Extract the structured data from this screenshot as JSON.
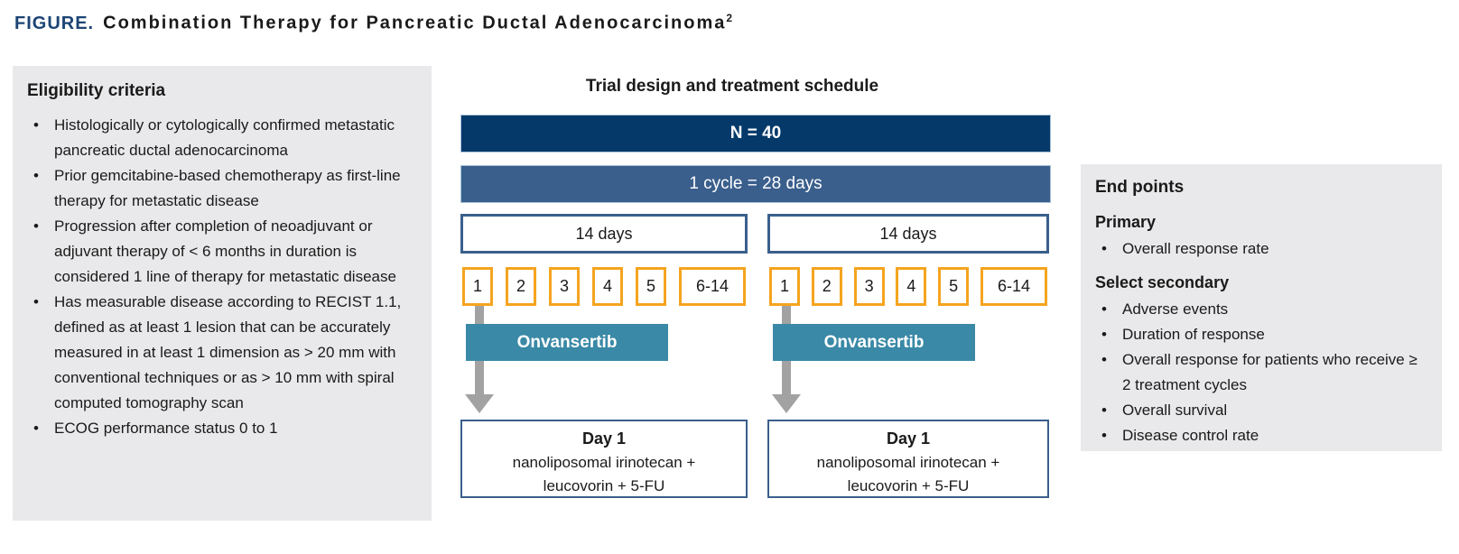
{
  "figure": {
    "label": "FIGURE.",
    "title": "Combination Therapy for Pancreatic Ductal Adenocarcinoma",
    "title_superscript": "2"
  },
  "eligibility": {
    "heading": "Eligibility criteria",
    "items": [
      "Histologically or cytologically confirmed metastatic pancreatic ductal adenocarcinoma",
      "Prior gemcitabine-based chemotherapy as first-line therapy for metastatic disease",
      "Progression after completion of neoadjuvant or adjuvant therapy of < 6 months in duration is considered 1 line of therapy for metastatic disease",
      "Has measurable disease according to RECIST 1.1, defined as at least 1 lesion that can be accurately measured in at least 1 dimension as > 20 mm with conventional techniques or as > 10 mm with spiral computed tomography scan",
      "ECOG performance status 0 to 1"
    ]
  },
  "trial": {
    "heading": "Trial design and treatment schedule",
    "enrollment_label": "N = 40",
    "cycle_label": "1 cycle = 28 days",
    "cycles": [
      {
        "duration_label": "14 days",
        "days": [
          "1",
          "2",
          "3",
          "4",
          "5",
          "6-14"
        ],
        "drug_label": "Onvansertib",
        "infusion": {
          "day_label": "Day 1",
          "line1": "nanoliposomal irinotecan +",
          "line2": "leucovorin + 5-FU"
        }
      },
      {
        "duration_label": "14 days",
        "days": [
          "1",
          "2",
          "3",
          "4",
          "5",
          "6-14"
        ],
        "drug_label": "Onvansertib",
        "infusion": {
          "day_label": "Day 1",
          "line1": "nanoliposomal irinotecan +",
          "line2": "leucovorin + 5-FU"
        }
      }
    ]
  },
  "endpoints": {
    "heading": "End points",
    "primary_heading": "Primary",
    "primary_items": [
      "Overall response rate"
    ],
    "secondary_heading": "Select secondary",
    "secondary_items": [
      "Adverse events",
      "Duration of response",
      "Overall response for patients who receive ≥ 2 treatment cycles",
      "Overall survival",
      "Disease control rate"
    ]
  },
  "colors": {
    "navy": "#04396a",
    "label-navy": "#1c4474",
    "steel-blue": "#3a5f8c",
    "teal": "#3a89a6",
    "orange": "#f5a41f",
    "arrow-gray": "#a2a2a2",
    "panel-gray": "#e9e9eb",
    "text-dark": "#1a1a1a"
  }
}
